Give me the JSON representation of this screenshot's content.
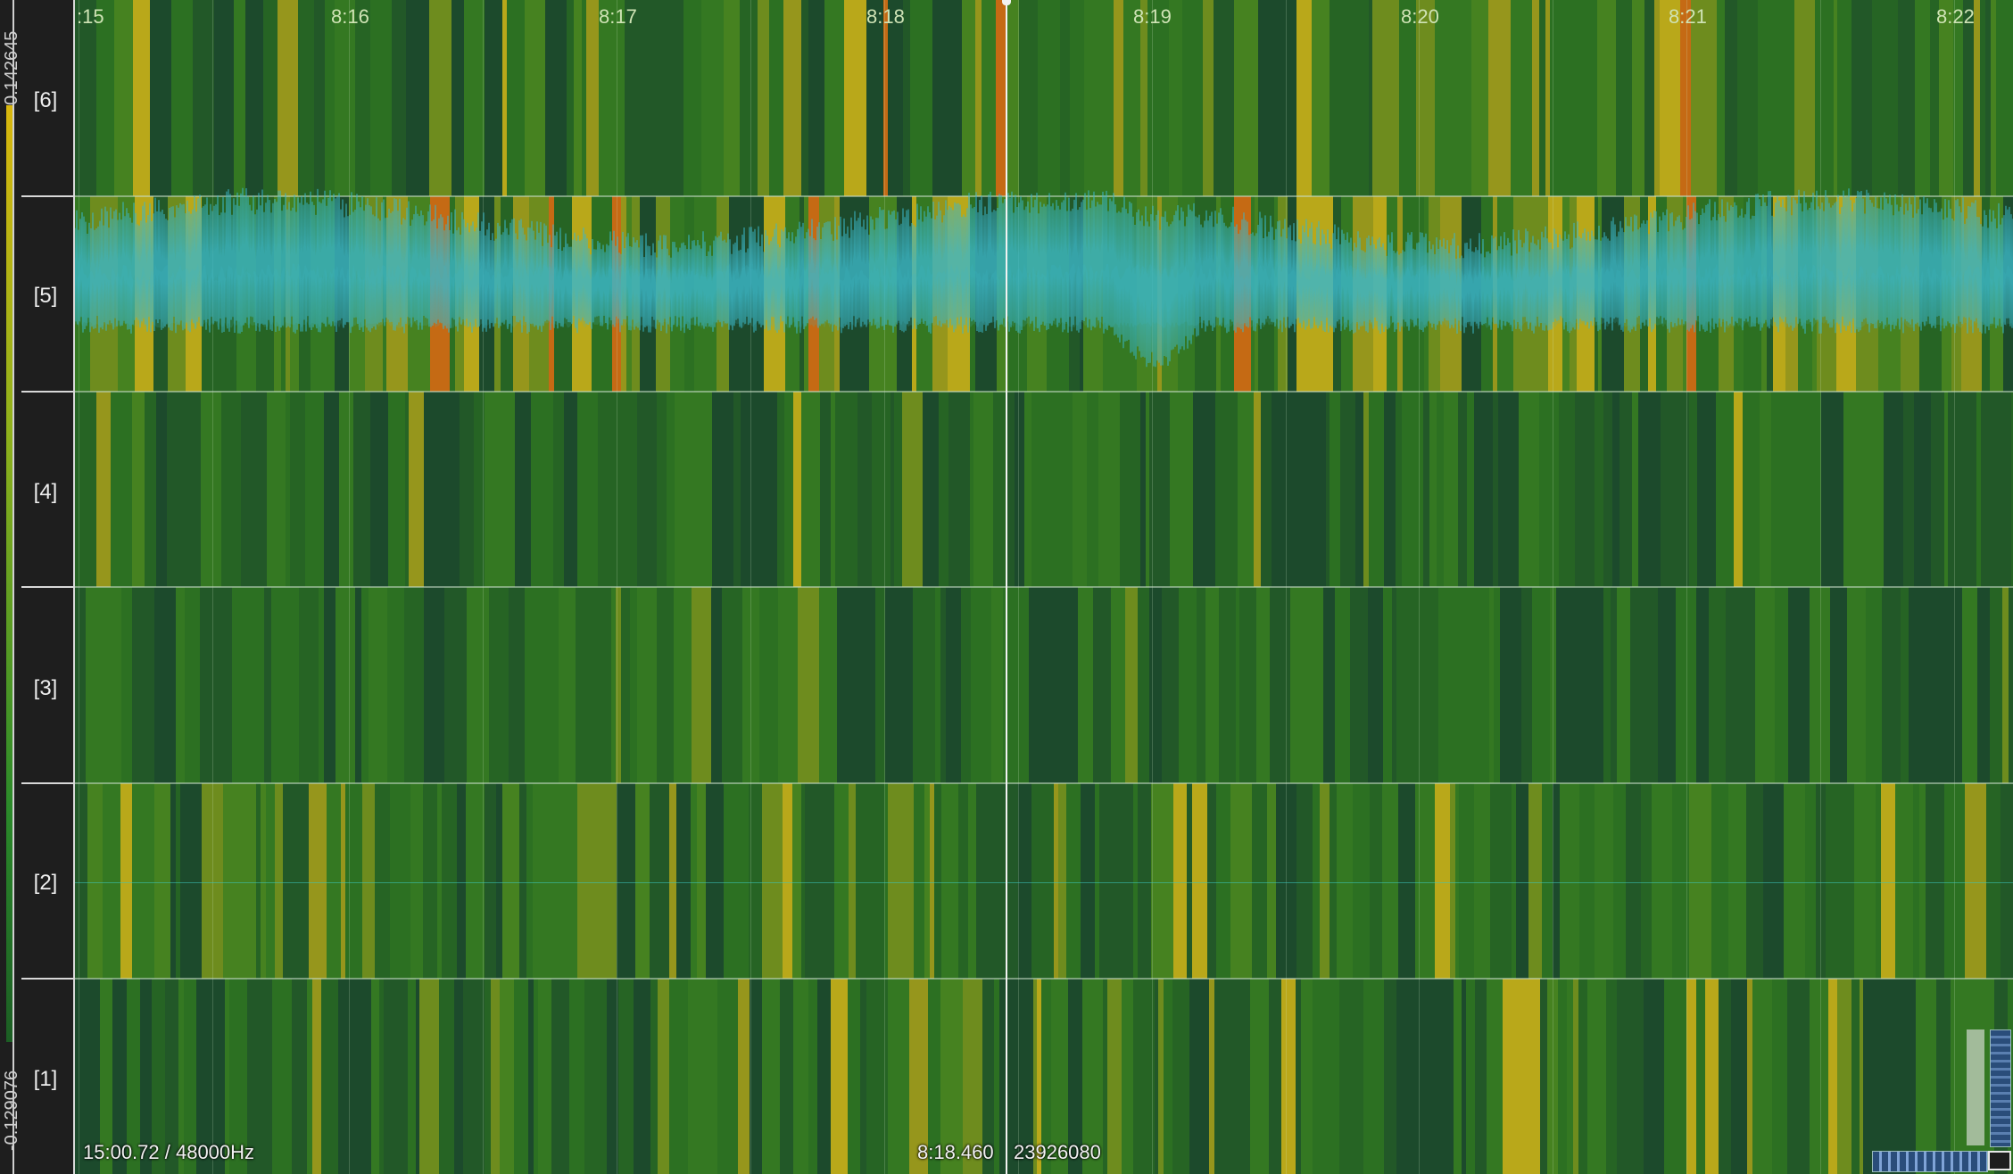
{
  "app": {
    "scale": {
      "max": "0.142645",
      "min": "-0.129076"
    },
    "channels": [
      "[6]",
      "[5]",
      "[4]",
      "[3]",
      "[2]",
      "[1]"
    ],
    "timeline": {
      "ticks": [
        ":15",
        "8:16",
        "8:17",
        "8:18",
        "8:19",
        "8:20",
        "8:21",
        "8:22"
      ]
    },
    "status": {
      "duration_rate": "15:00.72 / 48000Hz",
      "cursor_time": "8:18.460",
      "cursor_sample": "23926080"
    },
    "colors": {
      "background": "#1e1e1e",
      "spectrum_low": "#1c4a2c",
      "spectrum_mid": "#2f7a25",
      "spectrum_high": "#b9a81a",
      "spectrum_peak": "#c56a14",
      "waveform": "#3cb6c8",
      "playhead": "#f2f2f2"
    },
    "icons": [
      "playhead-knob-icon"
    ]
  }
}
